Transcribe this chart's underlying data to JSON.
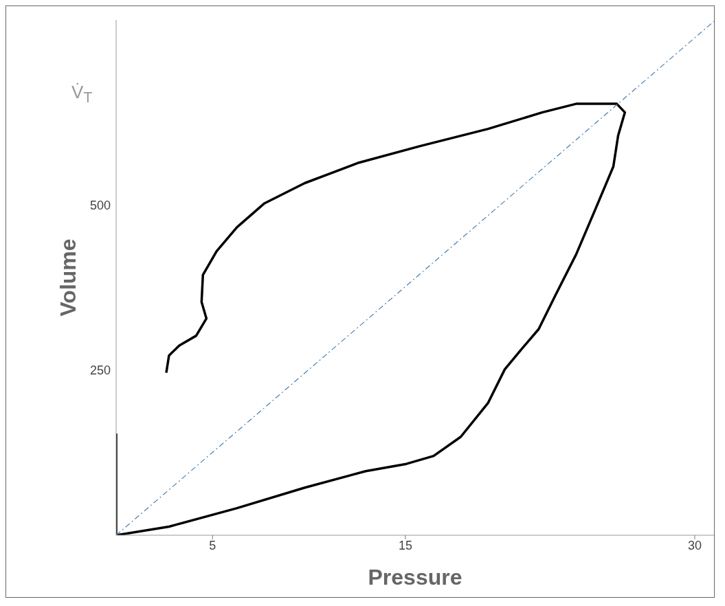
{
  "chart_data": {
    "type": "line",
    "xlabel": "Pressure",
    "ylabel": "Volume",
    "annotations": [
      "V̇$_{T}$"
    ],
    "xlim": [
      0,
      31
    ],
    "xticks": [
      5,
      15,
      30
    ],
    "ylim": [
      0,
      780
    ],
    "yticks": [
      250,
      500
    ],
    "marker": "none",
    "series": [
      {
        "color": "#000000",
        "line_style": "solid",
        "x": [
          2.6,
          2.74,
          3.27,
          4.15,
          4.68,
          4.43,
          4.5,
          5.21,
          6.26,
          7.67,
          9.78,
          12.59,
          15.76,
          19.28,
          22.09,
          23.85,
          25.96,
          26.38,
          26.03,
          25.78,
          24.9,
          23.85,
          22.79,
          21.91,
          21.03,
          20.15,
          19.28,
          17.87,
          16.46,
          15.05,
          12.94,
          9.78,
          6.26,
          2.74,
          0,
          0
        ],
        "values": [
          246,
          272,
          287,
          302,
          328,
          353,
          394,
          430,
          466,
          502,
          533,
          564,
          589,
          615,
          640,
          653,
          653,
          640,
          605,
          558,
          497,
          425,
          364,
          312,
          282,
          251,
          200,
          149,
          120,
          108,
          97,
          72,
          41,
          13,
          0,
          154
        ]
      },
      {
        "color": "#4a7fb0",
        "line_style": "dashed",
        "x": [
          0,
          31
        ],
        "values": [
          0,
          778
        ]
      }
    ]
  }
}
